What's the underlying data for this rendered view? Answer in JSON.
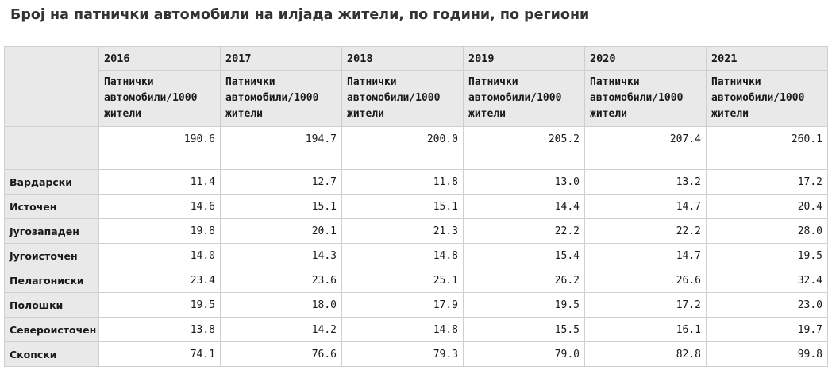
{
  "title": "Број на патнички автомобили на илјада жители, по години, по региони",
  "table": {
    "years": [
      "2016",
      "2017",
      "2018",
      "2019",
      "2020",
      "2021"
    ],
    "unit_label": "Патнички автомобили/1000 жители",
    "total_row": [
      "190.6",
      "194.7",
      "200.0",
      "205.2",
      "207.4",
      "260.1"
    ],
    "rows": [
      {
        "region": "Вардарски",
        "values": [
          "11.4",
          "12.7",
          "11.8",
          "13.0",
          "13.2",
          "17.2"
        ]
      },
      {
        "region": "Источен",
        "values": [
          "14.6",
          "15.1",
          "15.1",
          "14.4",
          "14.7",
          "20.4"
        ]
      },
      {
        "region": "Југозападен",
        "values": [
          "19.8",
          "20.1",
          "21.3",
          "22.2",
          "22.2",
          "28.0"
        ]
      },
      {
        "region": "Југоисточен",
        "values": [
          "14.0",
          "14.3",
          "14.8",
          "15.4",
          "14.7",
          "19.5"
        ]
      },
      {
        "region": "Пелагониски",
        "values": [
          "23.4",
          "23.6",
          "25.1",
          "26.2",
          "26.6",
          "32.4"
        ]
      },
      {
        "region": "Полошки",
        "values": [
          "19.5",
          "18.0",
          "17.9",
          "19.5",
          "17.2",
          "23.0"
        ]
      },
      {
        "region": "Североисточен",
        "values": [
          "13.8",
          "14.2",
          "14.8",
          "15.5",
          "16.1",
          "19.7"
        ]
      },
      {
        "region": "Скопски",
        "values": [
          "74.1",
          "76.6",
          "79.3",
          "79.0",
          "82.8",
          "99.8"
        ]
      }
    ]
  }
}
